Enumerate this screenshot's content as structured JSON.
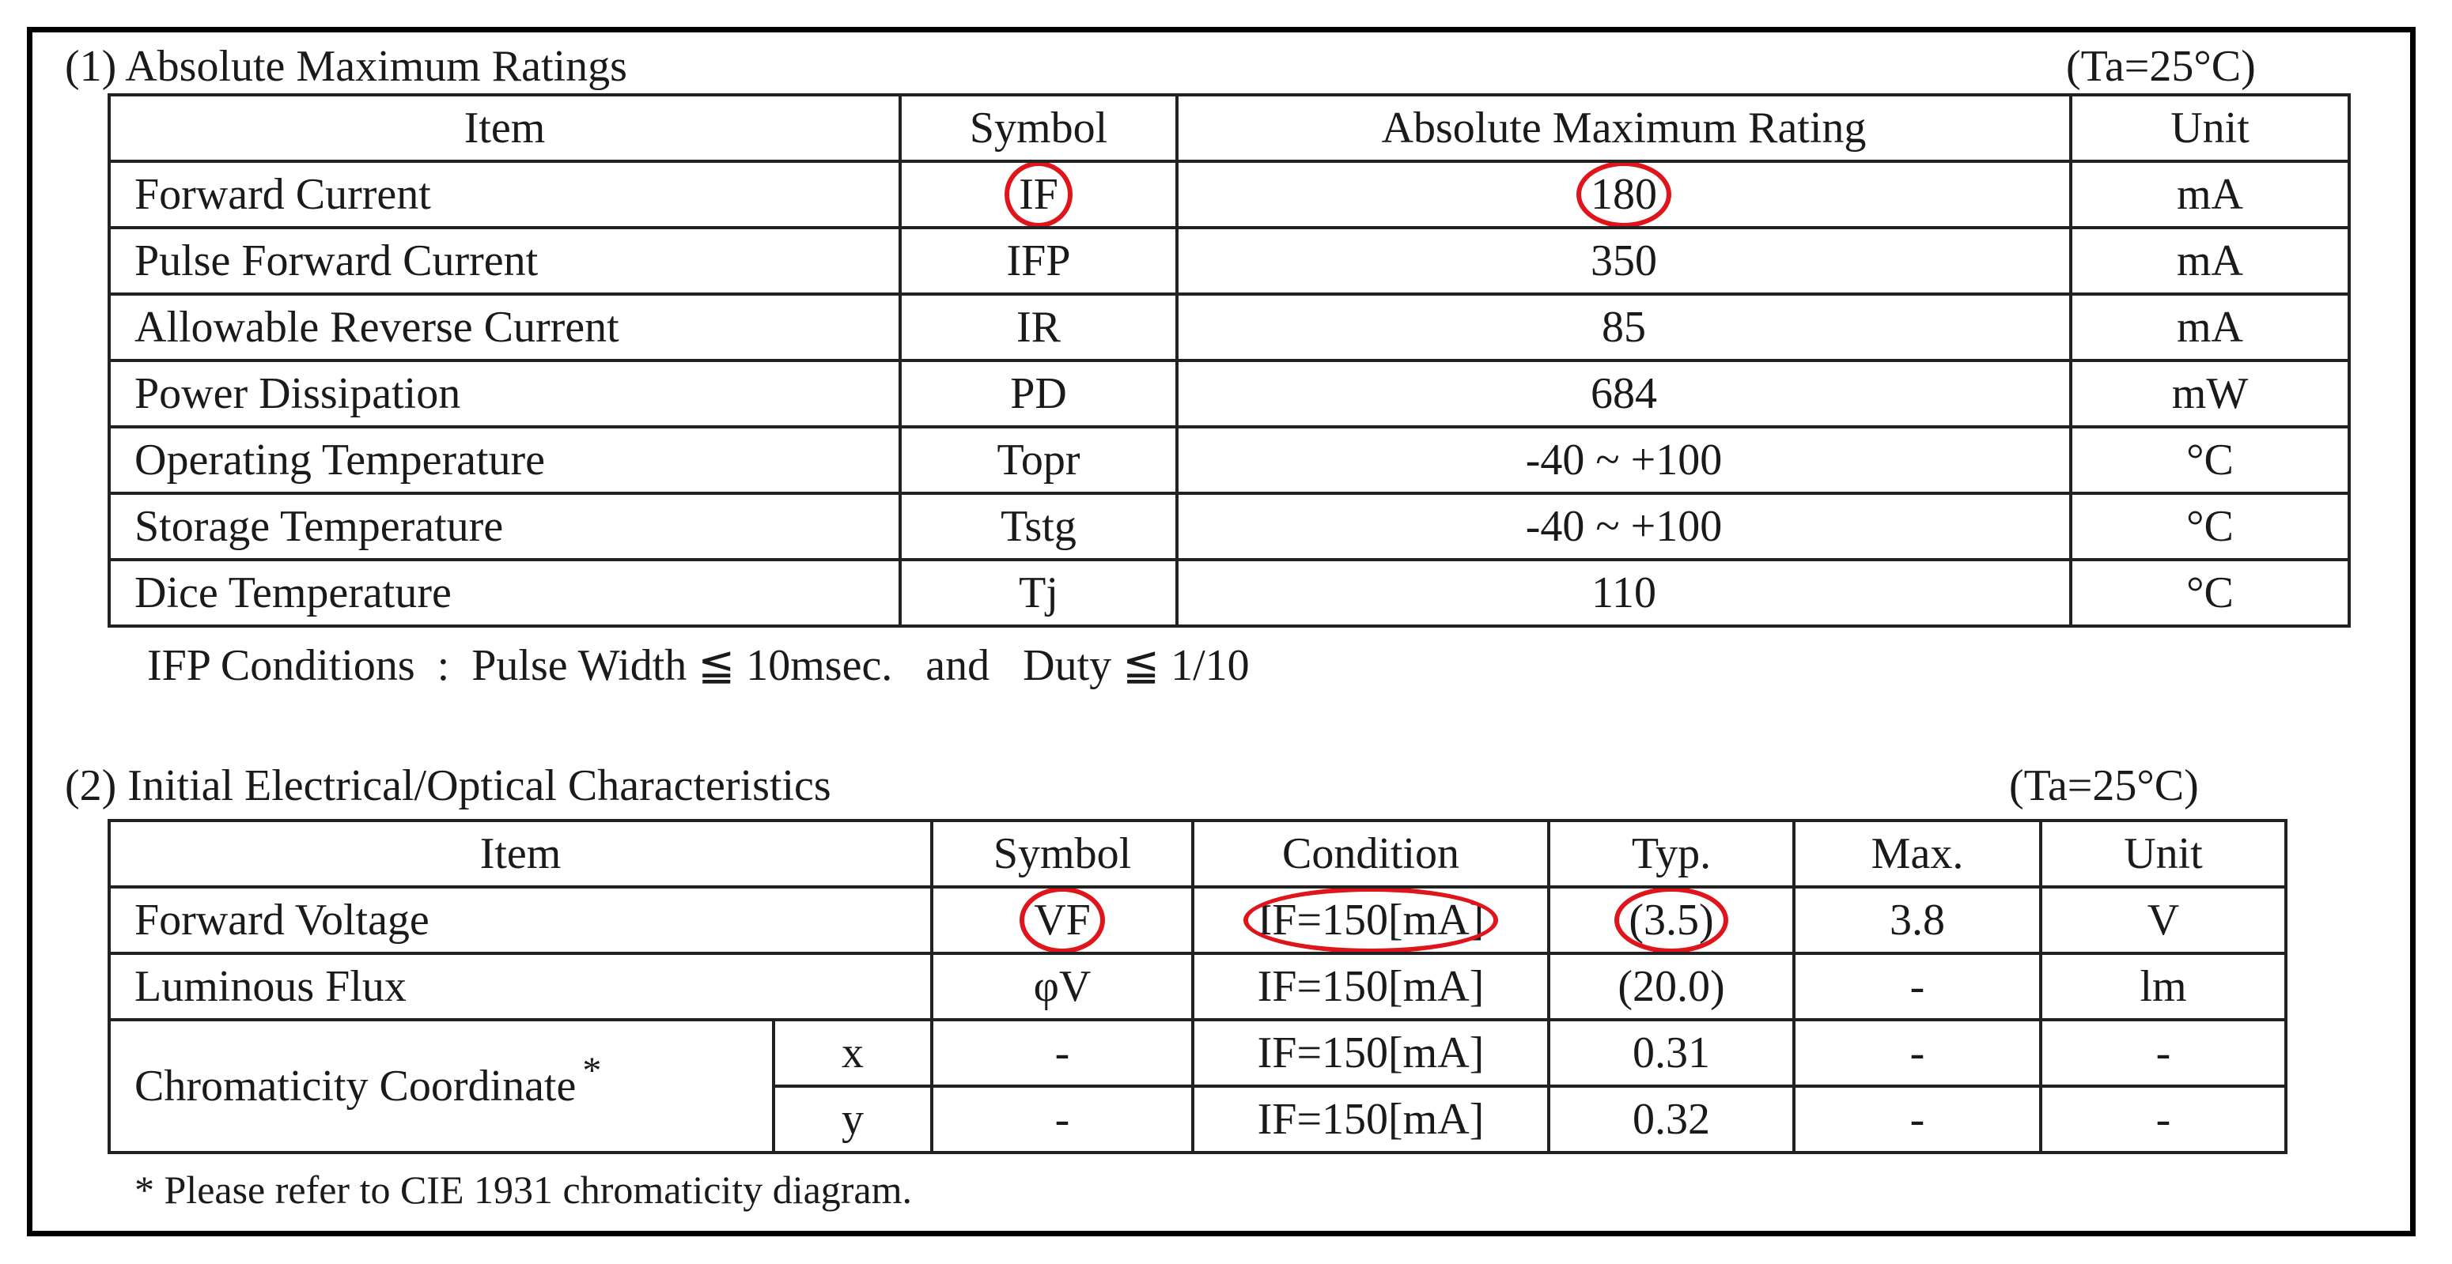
{
  "section1": {
    "title": "(1) Absolute Maximum Ratings",
    "ta": "(Ta=25°C)",
    "headers": [
      "Item",
      "Symbol",
      "Absolute Maximum Rating",
      "Unit"
    ],
    "rows": [
      {
        "item": "Forward Current",
        "symbol": "IF",
        "rating": "180",
        "unit": "mA"
      },
      {
        "item": "Pulse Forward Current",
        "symbol": "IFP",
        "rating": "350",
        "unit": "mA"
      },
      {
        "item": "Allowable Reverse Current",
        "symbol": "IR",
        "rating": "85",
        "unit": "mA"
      },
      {
        "item": "Power Dissipation",
        "symbol": "PD",
        "rating": "684",
        "unit": "mW"
      },
      {
        "item": "Operating Temperature",
        "symbol": "Topr",
        "rating": "-40 ~ +100",
        "unit": "°C"
      },
      {
        "item": "Storage Temperature",
        "symbol": "Tstg",
        "rating": "-40 ~ +100",
        "unit": "°C"
      },
      {
        "item": "Dice Temperature",
        "symbol": "Tj",
        "rating": "110",
        "unit": "°C"
      }
    ],
    "conditions": "IFP Conditions  :  Pulse Width ≦ 10msec.   and   Duty ≦ 1/10"
  },
  "section2": {
    "title": "(2) Initial Electrical/Optical Characteristics",
    "ta": "(Ta=25°C)",
    "headers": [
      "Item",
      "Symbol",
      "Condition",
      "Typ.",
      "Max.",
      "Unit"
    ],
    "rows": [
      {
        "item": "Forward Voltage",
        "symbol": "VF",
        "condition": "IF=150[mA]",
        "typ": "(3.5)",
        "max": "3.8",
        "unit": "V"
      },
      {
        "item": "Luminous Flux",
        "symbol": "φV",
        "condition": "IF=150[mA]",
        "typ": "(20.0)",
        "max": "-",
        "unit": "lm"
      },
      {
        "item": "Chromaticity Coordinate",
        "star": "*",
        "sub": "x",
        "symbol": "-",
        "condition": "IF=150[mA]",
        "typ": "0.31",
        "max": "-",
        "unit": "-"
      },
      {
        "sub": "y",
        "symbol": "-",
        "condition": "IF=150[mA]",
        "typ": "0.32",
        "max": "-",
        "unit": "-"
      }
    ],
    "footnote": "* Please refer to CIE 1931 chromaticity diagram."
  },
  "colors": {
    "highlight": "#e0141b",
    "border": "#000000"
  }
}
